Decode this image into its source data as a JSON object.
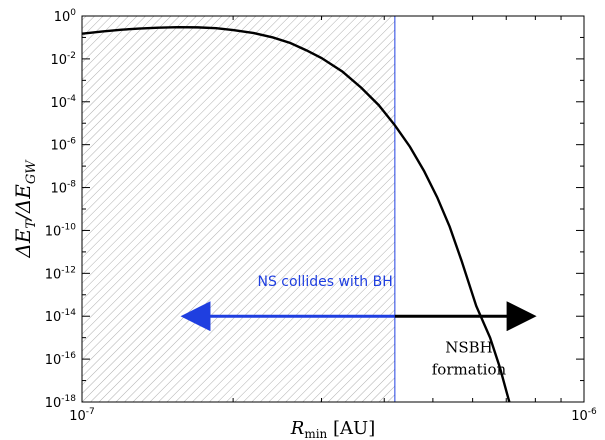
{
  "chart_data": {
    "type": "line",
    "title": "",
    "xlabel": {
      "symbol": "R",
      "subscript": "min",
      "unit": "[AU]"
    },
    "ylabel": "ΔE_T/ΔE_GW",
    "x_scale": "log",
    "y_scale": "log",
    "xlim": [
      1e-07,
      1e-06
    ],
    "ylim": [
      1e-18,
      1
    ],
    "x_ticks": [
      {
        "base": "10",
        "exp": "-7"
      },
      {
        "base": "10",
        "exp": "-6"
      }
    ],
    "y_ticks": [
      {
        "base": "10",
        "exp": "0"
      },
      {
        "base": "10",
        "exp": "-2"
      },
      {
        "base": "10",
        "exp": "-4"
      },
      {
        "base": "10",
        "exp": "-6"
      },
      {
        "base": "10",
        "exp": "-8"
      },
      {
        "base": "10",
        "exp": "-10"
      },
      {
        "base": "10",
        "exp": "-12"
      },
      {
        "base": "10",
        "exp": "-14"
      },
      {
        "base": "10",
        "exp": "-16"
      },
      {
        "base": "10",
        "exp": "-18"
      }
    ],
    "series": [
      {
        "color": "#000000",
        "points": [
          [
            1e-07,
            0.15
          ],
          [
            1.1e-07,
            0.19
          ],
          [
            1.2e-07,
            0.23
          ],
          [
            1.3e-07,
            0.26
          ],
          [
            1.42e-07,
            0.285
          ],
          [
            1.55e-07,
            0.3
          ],
          [
            1.7e-07,
            0.295
          ],
          [
            1.85e-07,
            0.27
          ],
          [
            2e-07,
            0.22
          ],
          [
            2.2e-07,
            0.16
          ],
          [
            2.4e-07,
            0.1
          ],
          [
            2.6e-07,
            0.055
          ],
          [
            2.8e-07,
            0.025
          ],
          [
            3e-07,
            0.011
          ],
          [
            3.3e-07,
            0.0026
          ],
          [
            3.6e-07,
            0.00045
          ],
          [
            3.9e-07,
            7e-05
          ],
          [
            4.2e-07,
            8e-06
          ],
          [
            4.5e-07,
            8e-07
          ],
          [
            4.8e-07,
            6e-08
          ],
          [
            5.1e-07,
            3.5e-09
          ],
          [
            5.4e-07,
            1.5e-10
          ],
          [
            5.7e-07,
            4e-12
          ],
          [
            6.1e-07,
            3e-14
          ],
          [
            6.5e-07,
            1e-15
          ],
          [
            6.8e-07,
            4e-17
          ],
          [
            7.1e-07,
            1e-18
          ]
        ]
      }
    ],
    "shaded_region": {
      "x_from": 1e-07,
      "x_to": 4.2e-07,
      "pattern": "diagonal hatch",
      "color": "#9a9a9a"
    },
    "vline": {
      "x": 4.2e-07,
      "color": "#1f3fe0"
    },
    "arrows": [
      {
        "from_x": 4.2e-07,
        "to_x": 1.6e-07,
        "y": 1e-14,
        "color": "#1f3fe0"
      },
      {
        "from_x": 4.2e-07,
        "to_x": 7.9e-07,
        "y": 1e-14,
        "color": "#000000"
      }
    ],
    "annotations": [
      {
        "id": "collide",
        "lines": [
          "NS collides with BH"
        ],
        "x": 3.05e-07,
        "y": 2.5e-13,
        "color": "#1f3fe0"
      },
      {
        "id": "formation",
        "lines": [
          "NSBH",
          "formation"
        ],
        "x": 5.9e-07,
        "y": 2e-16,
        "color": "#000000"
      }
    ],
    "grid": false,
    "legend": "none"
  }
}
